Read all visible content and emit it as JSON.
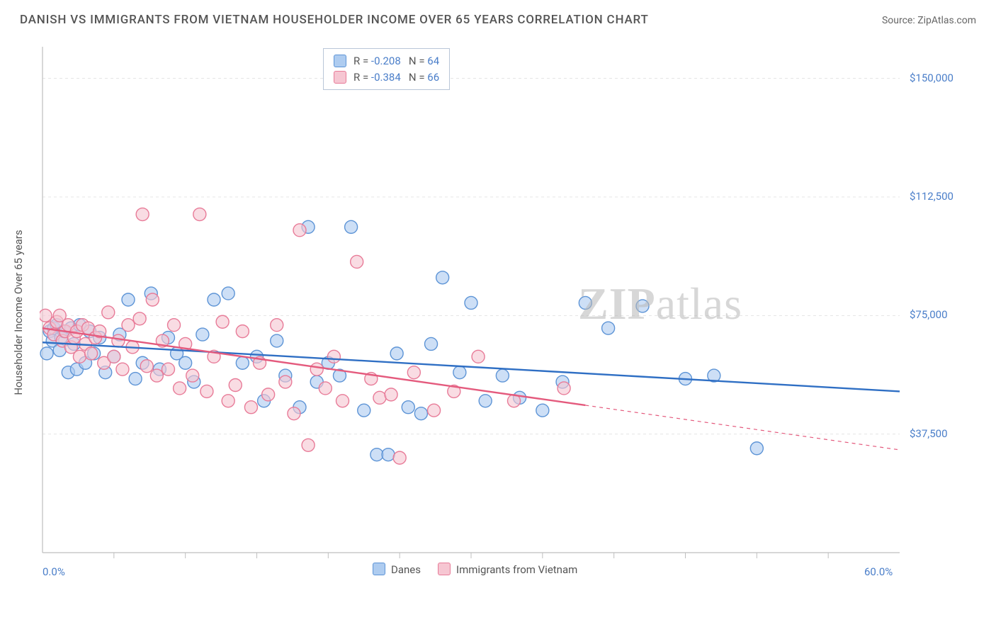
{
  "title": "DANISH VS IMMIGRANTS FROM VIETNAM HOUSEHOLDER INCOME OVER 65 YEARS CORRELATION CHART",
  "source_label": "Source: ZipAtlas.com",
  "ylabel": "Householder Income Over 65 years",
  "watermark_a": "ZIP",
  "watermark_b": "atlas",
  "chart": {
    "type": "scatter-with-regression",
    "background_color": "#ffffff",
    "grid_color": "#e4e4e4",
    "axis_color": "#bfbfbf",
    "tick_color": "#bfbfbf",
    "xlim": [
      0,
      60
    ],
    "ylim": [
      0,
      160000
    ],
    "x_ticks_minor": [
      5,
      10,
      15,
      20,
      25,
      30,
      35,
      40,
      45,
      50,
      55
    ],
    "y_gridlines": [
      37500,
      75000,
      112500,
      150000
    ],
    "y_tick_labels": [
      "$37,500",
      "$75,000",
      "$112,500",
      "$150,000"
    ],
    "x_axis_labels": {
      "min": "0.0%",
      "max": "60.0%"
    },
    "marker_radius": 9,
    "marker_stroke_width": 1.4,
    "reg_line_width": 2.4,
    "series": [
      {
        "key": "danes",
        "label": "Danes",
        "fill": "#aeccf0",
        "fill_opacity": 0.62,
        "stroke": "#5d94d6",
        "line_color": "#2f6fc4",
        "R": "-0.208",
        "N": "64",
        "reg_y_at_x0": 66500,
        "reg_y_at_xmax": 51000,
        "solid_until_x": 60,
        "points": [
          [
            0.3,
            63000
          ],
          [
            0.5,
            70000
          ],
          [
            0.7,
            67000
          ],
          [
            0.8,
            71000
          ],
          [
            1.0,
            72000
          ],
          [
            1.2,
            64000
          ],
          [
            1.3,
            68000
          ],
          [
            1.5,
            70000
          ],
          [
            1.8,
            57000
          ],
          [
            2.0,
            71000
          ],
          [
            2.2,
            66000
          ],
          [
            2.4,
            58000
          ],
          [
            2.6,
            72000
          ],
          [
            3.0,
            60000
          ],
          [
            3.3,
            70000
          ],
          [
            3.6,
            63000
          ],
          [
            4.0,
            68000
          ],
          [
            4.4,
            57000
          ],
          [
            5.0,
            62000
          ],
          [
            5.4,
            69000
          ],
          [
            6.0,
            80000
          ],
          [
            6.5,
            55000
          ],
          [
            7.0,
            60000
          ],
          [
            7.6,
            82000
          ],
          [
            8.2,
            58000
          ],
          [
            8.8,
            68000
          ],
          [
            9.4,
            63000
          ],
          [
            10.0,
            60000
          ],
          [
            10.6,
            54000
          ],
          [
            11.2,
            69000
          ],
          [
            12.0,
            80000
          ],
          [
            13.0,
            82000
          ],
          [
            14.0,
            60000
          ],
          [
            15.0,
            62000
          ],
          [
            15.5,
            48000
          ],
          [
            16.4,
            67000
          ],
          [
            17.0,
            56000
          ],
          [
            18.0,
            46000
          ],
          [
            18.6,
            103000
          ],
          [
            19.2,
            54000
          ],
          [
            20.0,
            60000
          ],
          [
            20.8,
            56000
          ],
          [
            21.6,
            103000
          ],
          [
            22.5,
            45000
          ],
          [
            23.4,
            31000
          ],
          [
            24.2,
            31000
          ],
          [
            24.8,
            63000
          ],
          [
            25.6,
            46000
          ],
          [
            26.5,
            44000
          ],
          [
            27.2,
            66000
          ],
          [
            28.0,
            87000
          ],
          [
            29.2,
            57000
          ],
          [
            30.0,
            79000
          ],
          [
            31.0,
            48000
          ],
          [
            32.2,
            56000
          ],
          [
            33.4,
            49000
          ],
          [
            35.0,
            45000
          ],
          [
            36.4,
            54000
          ],
          [
            39.6,
            71000
          ],
          [
            42.0,
            78000
          ],
          [
            45.0,
            55000
          ],
          [
            47.0,
            56000
          ],
          [
            50.0,
            33000
          ],
          [
            38.0,
            79000
          ]
        ]
      },
      {
        "key": "vietnam",
        "label": "Immigrants from Vietnam",
        "fill": "#f6c6d2",
        "fill_opacity": 0.62,
        "stroke": "#e87b98",
        "line_color": "#e45a7d",
        "R": "-0.384",
        "N": "66",
        "reg_y_at_x0": 71000,
        "reg_y_at_xmax": 32500,
        "solid_until_x": 38,
        "points": [
          [
            0.2,
            75000
          ],
          [
            0.5,
            71000
          ],
          [
            0.8,
            69000
          ],
          [
            1.0,
            73000
          ],
          [
            1.2,
            75000
          ],
          [
            1.4,
            67000
          ],
          [
            1.6,
            70000
          ],
          [
            1.8,
            72000
          ],
          [
            2.0,
            65000
          ],
          [
            2.2,
            68000
          ],
          [
            2.4,
            70000
          ],
          [
            2.6,
            62000
          ],
          [
            2.8,
            72000
          ],
          [
            3.0,
            66000
          ],
          [
            3.2,
            71000
          ],
          [
            3.4,
            63000
          ],
          [
            3.7,
            68000
          ],
          [
            4.0,
            70000
          ],
          [
            4.3,
            60000
          ],
          [
            4.6,
            76000
          ],
          [
            5.0,
            62000
          ],
          [
            5.3,
            67000
          ],
          [
            5.6,
            58000
          ],
          [
            6.0,
            72000
          ],
          [
            6.3,
            65000
          ],
          [
            6.8,
            74000
          ],
          [
            7.0,
            107000
          ],
          [
            7.3,
            59000
          ],
          [
            7.7,
            80000
          ],
          [
            8.0,
            56000
          ],
          [
            8.4,
            67000
          ],
          [
            8.8,
            58000
          ],
          [
            9.2,
            72000
          ],
          [
            9.6,
            52000
          ],
          [
            10.0,
            66000
          ],
          [
            10.5,
            56000
          ],
          [
            11.0,
            107000
          ],
          [
            11.5,
            51000
          ],
          [
            12.0,
            62000
          ],
          [
            12.6,
            73000
          ],
          [
            13.0,
            48000
          ],
          [
            13.5,
            53000
          ],
          [
            14.0,
            70000
          ],
          [
            14.6,
            46000
          ],
          [
            15.2,
            60000
          ],
          [
            15.8,
            50000
          ],
          [
            16.4,
            72000
          ],
          [
            17.0,
            54000
          ],
          [
            17.6,
            44000
          ],
          [
            18.0,
            102000
          ],
          [
            18.6,
            34000
          ],
          [
            19.2,
            58000
          ],
          [
            19.8,
            52000
          ],
          [
            20.4,
            62000
          ],
          [
            21.0,
            48000
          ],
          [
            22.0,
            92000
          ],
          [
            23.0,
            55000
          ],
          [
            23.6,
            49000
          ],
          [
            24.4,
            50000
          ],
          [
            25.0,
            30000
          ],
          [
            26.0,
            57000
          ],
          [
            27.4,
            45000
          ],
          [
            28.8,
            51000
          ],
          [
            30.5,
            62000
          ],
          [
            33.0,
            48000
          ],
          [
            36.5,
            52000
          ]
        ]
      }
    ]
  },
  "top_legend": {
    "R_label": "R =",
    "N_label": "N ="
  },
  "bottom_legend_labels": [
    "Danes",
    "Immigrants from Vietnam"
  ]
}
